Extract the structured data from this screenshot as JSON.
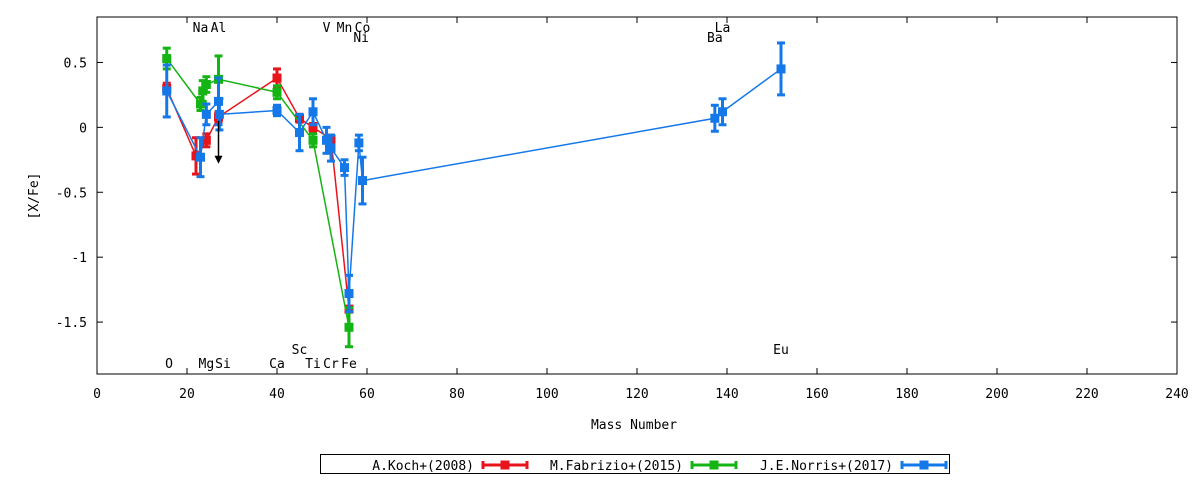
{
  "chart_data": {
    "type": "scatter",
    "title": "",
    "xlabel": "Mass Number",
    "ylabel": "[X/Fe]",
    "xlim": [
      0,
      240
    ],
    "ylim": [
      -1.9,
      0.85
    ],
    "x_ticks": [
      0,
      20,
      40,
      60,
      80,
      100,
      120,
      140,
      160,
      180,
      200,
      220,
      240
    ],
    "y_ticks": [
      {
        "value": 0.5,
        "label": "0.5"
      },
      {
        "value": 0,
        "label": "0"
      },
      {
        "value": -0.5,
        "label": "-0.5"
      },
      {
        "value": -1,
        "label": "-1"
      },
      {
        "value": -1.5,
        "label": "-1.5"
      }
    ],
    "legend_position": "bottom",
    "series": [
      {
        "name": "A.Koch+(2008)",
        "color": "#e8141c",
        "points": [
          {
            "x": 15.5,
            "y": 0.3,
            "err": 0.04
          },
          {
            "x": 22,
            "y": -0.22,
            "err": 0.14
          },
          {
            "x": 24.3,
            "y": -0.1,
            "err": 0.05
          },
          {
            "x": 27,
            "y": 0.08,
            "err": 0.04
          },
          {
            "x": 40,
            "y": 0.38,
            "err": 0.07
          },
          {
            "x": 45,
            "y": 0.07,
            "err": 0.03
          },
          {
            "x": 48,
            "y": 0.0,
            "err": 0.03
          },
          {
            "x": 52,
            "y": -0.09,
            "err": 0.03
          },
          {
            "x": 56,
            "y": -1.4,
            "err": 0.02
          }
        ]
      },
      {
        "name": "M.Fabrizio+(2015)",
        "color": "#14b414",
        "points": [
          {
            "x": 15.5,
            "y": 0.53,
            "err": 0.08
          },
          {
            "x": 23,
            "y": 0.18,
            "err": 0.05
          },
          {
            "x": 23.5,
            "y": 0.28,
            "err": 0.08
          },
          {
            "x": 24.3,
            "y": 0.33,
            "err": 0.06
          },
          {
            "x": 27,
            "y": 0.37,
            "err": 0.18
          },
          {
            "x": 40,
            "y": 0.27,
            "err": 0.05
          },
          {
            "x": 48,
            "y": -0.1,
            "err": 0.05
          },
          {
            "x": 56,
            "y": -1.54,
            "err": 0.15
          }
        ]
      },
      {
        "name": "J.E.Norris+(2017)",
        "color": "#1478e8",
        "points": [
          {
            "x": 15.5,
            "y": 0.28,
            "err": 0.2
          },
          {
            "x": 23,
            "y": -0.23,
            "err": 0.15
          },
          {
            "x": 24.3,
            "y": 0.1,
            "err": 0.08
          },
          {
            "x": 27,
            "y": 0.2,
            "err": 0.18
          },
          {
            "x": 27.2,
            "y": 0.1,
            "err": 0.12
          },
          {
            "x": 40,
            "y": 0.13,
            "err": 0.04
          },
          {
            "x": 45,
            "y": -0.04,
            "err": 0.14
          },
          {
            "x": 48,
            "y": 0.12,
            "err": 0.1
          },
          {
            "x": 51,
            "y": -0.1,
            "err": 0.1
          },
          {
            "x": 52,
            "y": -0.16,
            "err": 0.1
          },
          {
            "x": 55,
            "y": -0.31,
            "err": 0.06
          },
          {
            "x": 56,
            "y": -1.28,
            "err": 0.14
          },
          {
            "x": 58.2,
            "y": -0.12,
            "err": 0.06
          },
          {
            "x": 59,
            "y": -0.41,
            "err": 0.18
          },
          {
            "x": 137.3,
            "y": 0.07,
            "err": 0.1
          },
          {
            "x": 139,
            "y": 0.12,
            "err": 0.1
          },
          {
            "x": 152,
            "y": 0.45,
            "err": 0.2
          }
        ]
      }
    ],
    "upper_limit": {
      "x": 27,
      "y_from": 0.05,
      "y_to": -0.28,
      "color": "#000000"
    },
    "element_labels": [
      {
        "text": "Na",
        "x": 23,
        "y_row": "top1"
      },
      {
        "text": "Al",
        "x": 27,
        "y_row": "top1"
      },
      {
        "text": "V",
        "x": 51,
        "y_row": "top1"
      },
      {
        "text": "Mn",
        "x": 55,
        "y_row": "top1"
      },
      {
        "text": "Co",
        "x": 59,
        "y_row": "top1"
      },
      {
        "text": "Ni",
        "x": 58.7,
        "y_row": "top2"
      },
      {
        "text": "La",
        "x": 139,
        "y_row": "top1"
      },
      {
        "text": "Ba",
        "x": 137.3,
        "y_row": "top2"
      },
      {
        "text": "O",
        "x": 16,
        "y_row": "bottom2"
      },
      {
        "text": "Mg",
        "x": 24.3,
        "y_row": "bottom2"
      },
      {
        "text": "Si",
        "x": 28,
        "y_row": "bottom2"
      },
      {
        "text": "Ca",
        "x": 40,
        "y_row": "bottom2"
      },
      {
        "text": "Sc",
        "x": 45,
        "y_row": "bottom1"
      },
      {
        "text": "Ti",
        "x": 48,
        "y_row": "bottom2"
      },
      {
        "text": "Cr",
        "x": 52,
        "y_row": "bottom2"
      },
      {
        "text": "Fe",
        "x": 56,
        "y_row": "bottom2"
      },
      {
        "text": "Eu",
        "x": 152,
        "y_row": "bottom1"
      }
    ]
  }
}
